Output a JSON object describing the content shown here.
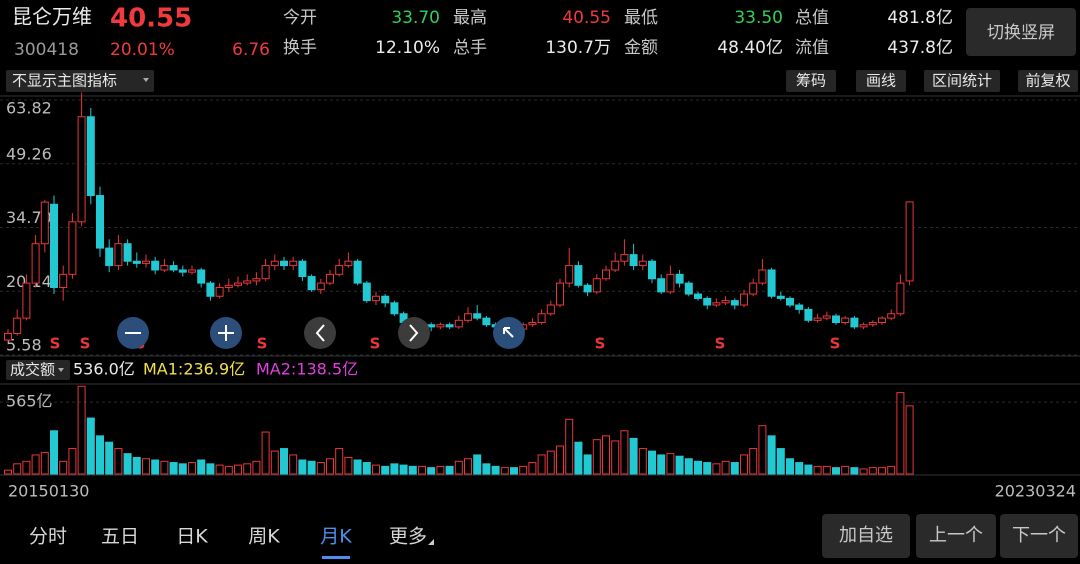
{
  "header": {
    "name": "昆仑万维",
    "price": "40.55",
    "code": "300418",
    "change_pct": "20.01%",
    "change": "6.76",
    "stats": [
      {
        "label": "今开",
        "value": "33.70"
      },
      {
        "label": "最高",
        "value": "40.55"
      },
      {
        "label": "最低",
        "value": "33.50"
      },
      {
        "label": "总值",
        "value": "481.8亿"
      },
      {
        "label": "换手",
        "value": "12.10%"
      },
      {
        "label": "总手",
        "value": "130.7万"
      },
      {
        "label": "金额",
        "value": "48.40亿"
      },
      {
        "label": "流值",
        "value": "437.8亿"
      }
    ],
    "rotate_button": "切换竖屏"
  },
  "toolbar": {
    "indicator": "不显示主图指标",
    "buttons": [
      "筹码",
      "画线",
      "区间统计",
      "前复权"
    ]
  },
  "chart_data": {
    "type": "candlestick",
    "categories": [
      "20150130",
      null,
      null,
      null,
      null,
      null,
      null,
      null,
      null,
      null,
      null,
      null,
      null,
      null,
      null,
      null,
      null,
      null,
      null,
      null,
      null,
      null,
      null,
      null,
      null,
      null,
      null,
      null,
      null,
      null,
      null,
      null,
      null,
      null,
      null,
      null,
      null,
      null,
      null,
      null,
      null,
      null,
      null,
      null,
      null,
      null,
      null,
      null,
      null,
      null,
      null,
      null,
      null,
      null,
      null,
      null,
      null,
      null,
      null,
      null,
      null,
      null,
      null,
      null,
      null,
      null,
      null,
      null,
      null,
      null,
      null,
      null,
      null,
      null,
      null,
      null,
      null,
      null,
      null,
      null,
      null,
      null,
      null,
      null,
      null,
      null,
      null,
      null,
      null,
      null,
      null,
      null,
      null,
      null,
      null,
      null,
      null,
      null,
      "20230324"
    ],
    "open": [
      9,
      10.5,
      14,
      22,
      31,
      40,
      21,
      24,
      36,
      60,
      42,
      30,
      26,
      31,
      27,
      26.5,
      27,
      25,
      26,
      25,
      24.5,
      25,
      22,
      19,
      21,
      21.5,
      22,
      22.5,
      23,
      26,
      27,
      26,
      27,
      23.5,
      20.5,
      22,
      24,
      26,
      27,
      22,
      18,
      19,
      17.5,
      15,
      13,
      12,
      12.5,
      12,
      12.5,
      12,
      13.5,
      15,
      14,
      12.5,
      12,
      12.5,
      11.5,
      12.5,
      13,
      15,
      17,
      22,
      26,
      21.5,
      20,
      23,
      25,
      27,
      28.5,
      26,
      27,
      23,
      20,
      24,
      22,
      19.5,
      18.5,
      17,
      17.5,
      18,
      17,
      19.5,
      22,
      25,
      19,
      18.5,
      17,
      16,
      13.5,
      14,
      14.5,
      13,
      14,
      12,
      12.5,
      13,
      14,
      15,
      22.5
    ],
    "close": [
      10.5,
      14,
      22,
      31,
      40.5,
      21,
      24,
      36,
      60,
      42,
      30,
      26,
      31,
      27,
      26.5,
      27,
      25,
      26,
      25,
      24.5,
      25,
      22,
      19,
      21,
      21.5,
      22,
      22.5,
      23,
      26,
      27,
      26,
      27,
      23.5,
      20.5,
      22,
      24,
      26,
      27,
      22,
      18,
      19,
      17.5,
      15,
      13,
      12,
      12.5,
      12,
      12.5,
      12,
      13.5,
      15,
      14,
      12.5,
      12,
      12.5,
      11.5,
      12.5,
      13,
      15,
      17,
      22,
      26,
      21.5,
      20,
      23,
      25,
      27,
      28.5,
      26,
      27,
      23,
      20,
      24,
      22,
      19.5,
      18.5,
      17,
      17.5,
      18,
      17,
      19.5,
      22,
      25,
      19,
      18.5,
      17,
      16,
      13.5,
      14,
      14.5,
      13,
      14,
      12,
      12.5,
      13,
      14,
      15,
      22,
      40.55
    ],
    "high": [
      11.5,
      16,
      24,
      33,
      41,
      42,
      26,
      38,
      65.5,
      62,
      44,
      32,
      33,
      32,
      29,
      28.5,
      28,
      27.5,
      27,
      26,
      26,
      25.5,
      22.5,
      22,
      23,
      23.5,
      24,
      24.5,
      27.5,
      28.5,
      28,
      28,
      27.5,
      24,
      23,
      25,
      27.5,
      29,
      27.5,
      22.5,
      20,
      19.5,
      18,
      15.5,
      13.5,
      13.5,
      13,
      13,
      13,
      14.5,
      16.5,
      17,
      14.5,
      13,
      13.5,
      13,
      13,
      14,
      16,
      18,
      23,
      30,
      27,
      22,
      24,
      26,
      29,
      32,
      31,
      28.5,
      27.5,
      24,
      26,
      25,
      22.5,
      20,
      19,
      18.5,
      19,
      18.5,
      20.5,
      23,
      27.5,
      25.5,
      20,
      19,
      17.5,
      16.5,
      15,
      15.5,
      15,
      14.5,
      14.5,
      13,
      13.5,
      14.5,
      16,
      24,
      40.55
    ],
    "low": [
      8.5,
      10,
      13.5,
      21,
      29,
      19.5,
      18,
      23,
      35,
      40,
      28,
      24.5,
      25,
      26,
      25.5,
      25.5,
      24,
      24.5,
      24.5,
      23.5,
      24,
      21,
      18,
      18.5,
      20,
      21,
      21.5,
      21.5,
      22.5,
      25,
      25,
      25,
      22.5,
      20,
      19.5,
      21.5,
      23.5,
      25.5,
      21.5,
      17.5,
      17,
      16.5,
      14.5,
      12.5,
      11.5,
      11.5,
      11,
      11.5,
      11.5,
      11.5,
      13,
      13.5,
      12,
      11.5,
      11.5,
      10.5,
      11,
      12,
      12.5,
      14.5,
      16.5,
      21,
      21,
      19,
      19.5,
      22.5,
      24.5,
      26,
      25,
      25,
      22,
      19.5,
      19.5,
      21,
      19,
      18,
      16,
      16.5,
      17,
      16,
      16.5,
      19,
      21.5,
      18.5,
      18,
      16.5,
      15,
      13,
      13,
      13.5,
      12.5,
      12.5,
      11.5,
      11.5,
      12,
      12.5,
      13.5,
      14.5,
      21.5
    ],
    "ylim": [
      5.58,
      63.82
    ],
    "yticks": [
      5.58,
      20.14,
      {
        "value": 34.7,
        "label": "34.70"
      },
      49.26,
      63.82
    ],
    "up_color": "#e8373b",
    "down_color": "#22c8d2",
    "signal_label": "S",
    "volume": {
      "label": "成交额",
      "value_label": "536.0亿",
      "ma1_label": "MA1:236.9亿",
      "ma2_label": "MA2:138.5亿",
      "values": [
        30,
        80,
        100,
        150,
        170,
        340,
        100,
        200,
        690,
        440,
        300,
        250,
        200,
        160,
        130,
        120,
        110,
        100,
        90,
        80,
        90,
        110,
        80,
        70,
        60,
        70,
        80,
        100,
        330,
        180,
        200,
        150,
        110,
        100,
        90,
        120,
        200,
        130,
        110,
        90,
        70,
        60,
        80,
        70,
        60,
        60,
        50,
        60,
        60,
        100,
        120,
        150,
        80,
        60,
        50,
        50,
        60,
        90,
        150,
        180,
        220,
        430,
        250,
        150,
        270,
        300,
        260,
        340,
        280,
        200,
        180,
        150,
        160,
        140,
        120,
        100,
        90,
        80,
        100,
        90,
        150,
        200,
        380,
        300,
        200,
        120,
        90,
        70,
        60,
        60,
        50,
        60,
        50,
        40,
        50,
        50,
        60,
        640,
        536
      ],
      "ylim": [
        0,
        700
      ],
      "yticks": [
        {
          "value": 565,
          "label": "565亿"
        }
      ]
    }
  },
  "tabs": [
    "分时",
    "五日",
    "日K",
    "周K",
    "月K",
    "更多"
  ],
  "buttons": [
    "加自选",
    "上一个",
    "下一个"
  ]
}
